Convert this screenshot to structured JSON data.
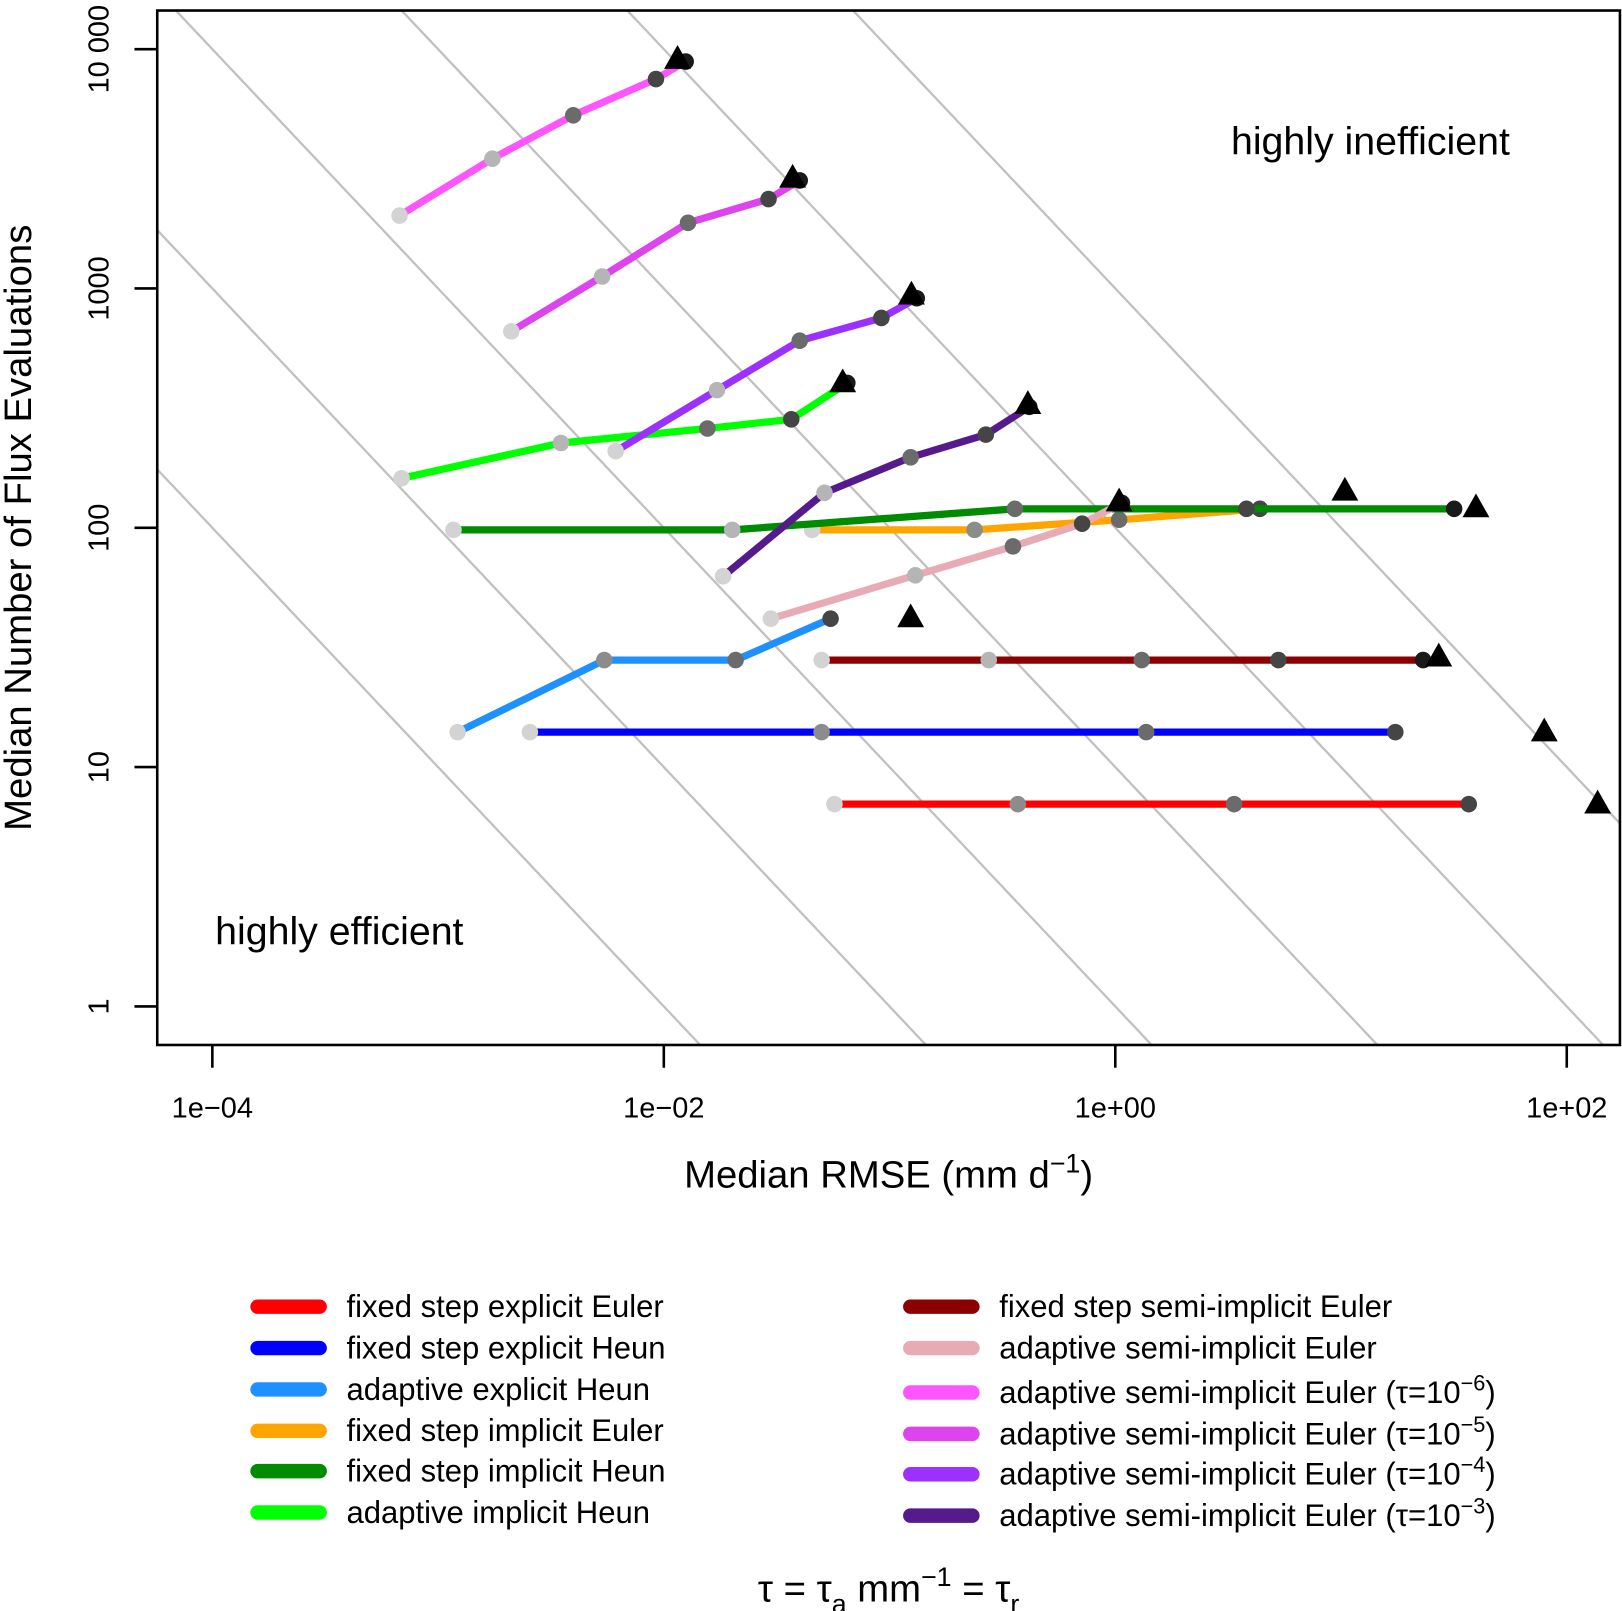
{
  "chart_data": {
    "type": "line",
    "x_scale": "log",
    "y_scale": "log",
    "xlim": [
      5.7e-05,
      172
    ],
    "ylim": [
      0.69,
      14500
    ],
    "x_ticks": [
      {
        "value": 0.0001,
        "label": "1e−04"
      },
      {
        "value": 0.01,
        "label": "1e−02"
      },
      {
        "value": 1,
        "label": "1e+00"
      },
      {
        "value": 100,
        "label": "1e+02"
      }
    ],
    "y_ticks": [
      {
        "value": 1,
        "label": "1"
      },
      {
        "value": 10,
        "label": "10"
      },
      {
        "value": 100,
        "label": "100"
      },
      {
        "value": 1000,
        "label": "1000"
      },
      {
        "value": 10000,
        "label": "10 000"
      }
    ],
    "xlabel": [
      {
        "t": "Median RMSE (mm d"
      },
      {
        "t": "−1",
        "sup": true
      },
      {
        "t": ")"
      }
    ],
    "ylabel": "Median Number of Flux Evaluations",
    "grid": false,
    "reference_lines": {
      "description_none": "",
      "log10_x_plus_log10_y": [
        -2,
        -1,
        0,
        1,
        2,
        3
      ],
      "color": "#c0c0c0"
    },
    "annotations": [
      {
        "text": "highly inefficient",
        "position": "top-right"
      },
      {
        "text": "highly efficient",
        "position": "bottom-left"
      }
    ],
    "point_shades": [
      "#d3d3d3",
      "#b5b5b5",
      "#8c8c8c",
      "#6b6b6b",
      "#454545",
      "#1a1a1a"
    ],
    "legend_placement": "bottom",
    "series": [
      {
        "name": "fixed step explicit Euler",
        "color": "#ff0000",
        "points": [
          [
            0.057,
            7
          ],
          [
            0.37,
            7
          ],
          [
            3.36,
            7
          ],
          [
            36.8,
            7
          ]
        ],
        "triangle": [
          137,
          7
        ]
      },
      {
        "name": "fixed step explicit Heun",
        "color": "#0000ff",
        "points": [
          [
            0.00255,
            14
          ],
          [
            0.05,
            14
          ],
          [
            1.37,
            14
          ],
          [
            17.4,
            14
          ]
        ],
        "triangle": [
          79.5,
          14
        ]
      },
      {
        "name": "adaptive explicit Heun",
        "color": "#1e90ff",
        "points": [
          [
            0.00122,
            14
          ],
          [
            0.00545,
            28
          ],
          [
            0.0208,
            28
          ],
          [
            0.0548,
            41.7
          ]
        ],
        "triangle": [
          0.124,
          42
        ]
      },
      {
        "name": "fixed step implicit Euler",
        "color": "#ffa500",
        "points": [
          [
            0.0454,
            98
          ],
          [
            0.238,
            98
          ],
          [
            1.04,
            108
          ],
          [
            4.37,
            120
          ]
        ],
        "triangle": [
          10.4,
          142
        ]
      },
      {
        "name": "fixed step implicit Heun",
        "color": "#008b00",
        "points": [
          [
            0.00117,
            98
          ],
          [
            0.0201,
            98
          ],
          [
            0.359,
            120
          ],
          [
            3.81,
            120
          ],
          [
            31.7,
            120
          ]
        ],
        "triangle": [
          39.6,
          121
        ]
      },
      {
        "name": "adaptive implicit Heun",
        "color": "#00ff00",
        "points": [
          [
            0.000689,
            161
          ],
          [
            0.0035,
            226
          ],
          [
            0.0156,
            260
          ],
          [
            0.0367,
            284
          ],
          [
            0.065,
            403
          ]
        ],
        "triangle": [
          0.062,
          403
        ]
      },
      {
        "name": "fixed step semi-implicit Euler",
        "color": "#8b0000",
        "points": [
          [
            0.05,
            28
          ],
          [
            0.275,
            28
          ],
          [
            1.31,
            28
          ],
          [
            5.28,
            28
          ],
          [
            23.1,
            28
          ]
        ],
        "triangle": [
          27.1,
          28.8
        ]
      },
      {
        "name": "adaptive semi-implicit Euler",
        "color": "#e8aab4",
        "points": [
          [
            0.0298,
            41.7
          ],
          [
            0.13,
            63.3
          ],
          [
            0.352,
            83.6
          ],
          [
            0.713,
            104
          ],
          [
            1.07,
            127
          ]
        ],
        "triangle": [
          1.04,
          128
        ]
      },
      {
        "name": "adaptive semi-implicit Euler (τ=10",
        "exp": "−6",
        "suffix": ")",
        "color": "#ff55ff",
        "points": [
          [
            0.000675,
            2017
          ],
          [
            0.00174,
            3486
          ],
          [
            0.00397,
            5292
          ],
          [
            0.00923,
            7499
          ],
          [
            0.0125,
            8875
          ]
        ],
        "triangle": [
          0.0115,
          9050
        ]
      },
      {
        "name": "adaptive semi-implicit Euler (τ=10",
        "exp": "−5",
        "suffix": ")",
        "color": "#dd44ee",
        "points": [
          [
            0.00211,
            662
          ],
          [
            0.00533,
            1122
          ],
          [
            0.0128,
            1881
          ],
          [
            0.0291,
            2364
          ],
          [
            0.04,
            2828
          ]
        ],
        "triangle": [
          0.0372,
          2885
        ]
      },
      {
        "name": "adaptive semi-implicit Euler (τ=10",
        "exp": "−4",
        "suffix": ")",
        "color": "#9b30ff",
        "points": [
          [
            0.00612,
            209
          ],
          [
            0.0172,
            376
          ],
          [
            0.04,
            605
          ],
          [
            0.092,
            753
          ],
          [
            0.132,
            910
          ]
        ],
        "triangle": [
          0.125,
          937
        ]
      },
      {
        "name": "adaptive semi-implicit Euler (τ=10",
        "exp": "−3",
        "suffix": ")",
        "color": "#551a8b",
        "points": [
          [
            0.0183,
            62.7
          ],
          [
            0.0515,
            140
          ],
          [
            0.124,
            197
          ],
          [
            0.267,
            245
          ],
          [
            0.416,
            320
          ]
        ],
        "triangle": [
          0.41,
          327
        ]
      }
    ],
    "footnote": [
      {
        "t": "τ = τ"
      },
      {
        "t": "a",
        "sub": true
      },
      {
        "t": " mm"
      },
      {
        "t": "−1",
        "sup": true
      },
      {
        "t": " = τ"
      },
      {
        "t": "r",
        "sub": true
      }
    ]
  }
}
